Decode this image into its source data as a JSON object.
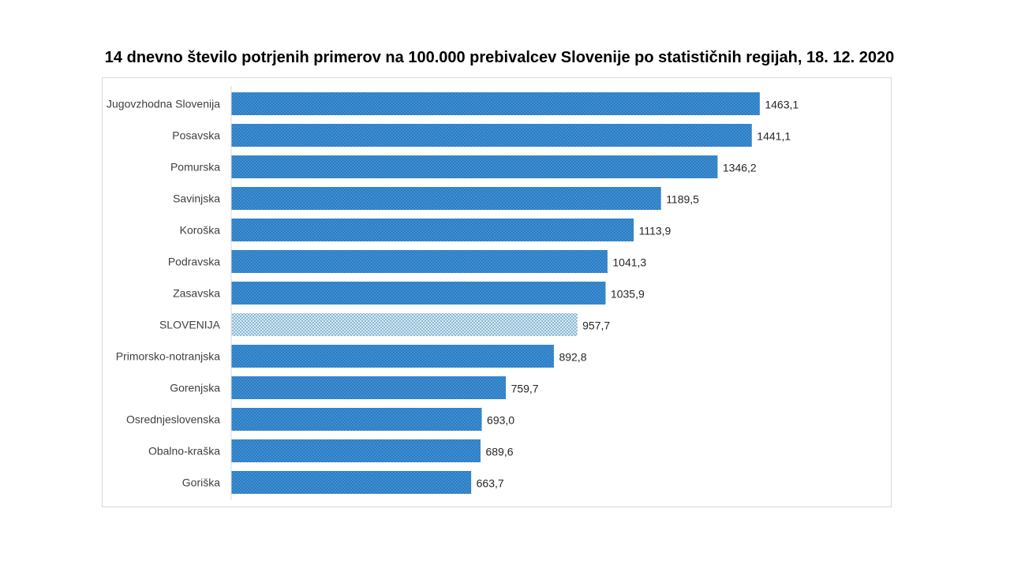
{
  "chart_data": {
    "type": "bar",
    "orientation": "horizontal",
    "title": "14 dnevno število potrjenih primerov na 100.000 prebivalcev Slovenije po statističnih regijah, 18. 12. 2020",
    "xlabel": "",
    "ylabel": "",
    "categories": [
      "Jugovzhodna Slovenija",
      "Posavska",
      "Pomurska",
      "Savinjska",
      "Koroška",
      "Podravska",
      "Zasavska",
      "SLOVENIJA",
      "Primorsko-notranjska",
      "Gorenjska",
      "Osrednjeslovenska",
      "Obalno-kraška",
      "Goriška"
    ],
    "values": [
      1463.1,
      1441.1,
      1346.2,
      1189.5,
      1113.9,
      1041.3,
      1035.9,
      957.7,
      892.8,
      759.7,
      693.0,
      689.6,
      663.7
    ],
    "value_labels": [
      "1463,1",
      "1441,1",
      "1346,2",
      "1189,5",
      "1113,9",
      "1041,3",
      "1035,9",
      "957,7",
      "892,8",
      "759,7",
      "693,0",
      "689,6",
      "663,7"
    ],
    "highlight_category": "SLOVENIJA",
    "xlim": [
      0,
      1500
    ],
    "grid": false,
    "legend": "none",
    "colors": {
      "bar": "#3b8fd6",
      "bar_dots": "#1f5f9a",
      "highlight": "#d3eaf7",
      "highlight_dots": "#2e6c95",
      "axis": "#d9d9d9"
    }
  }
}
